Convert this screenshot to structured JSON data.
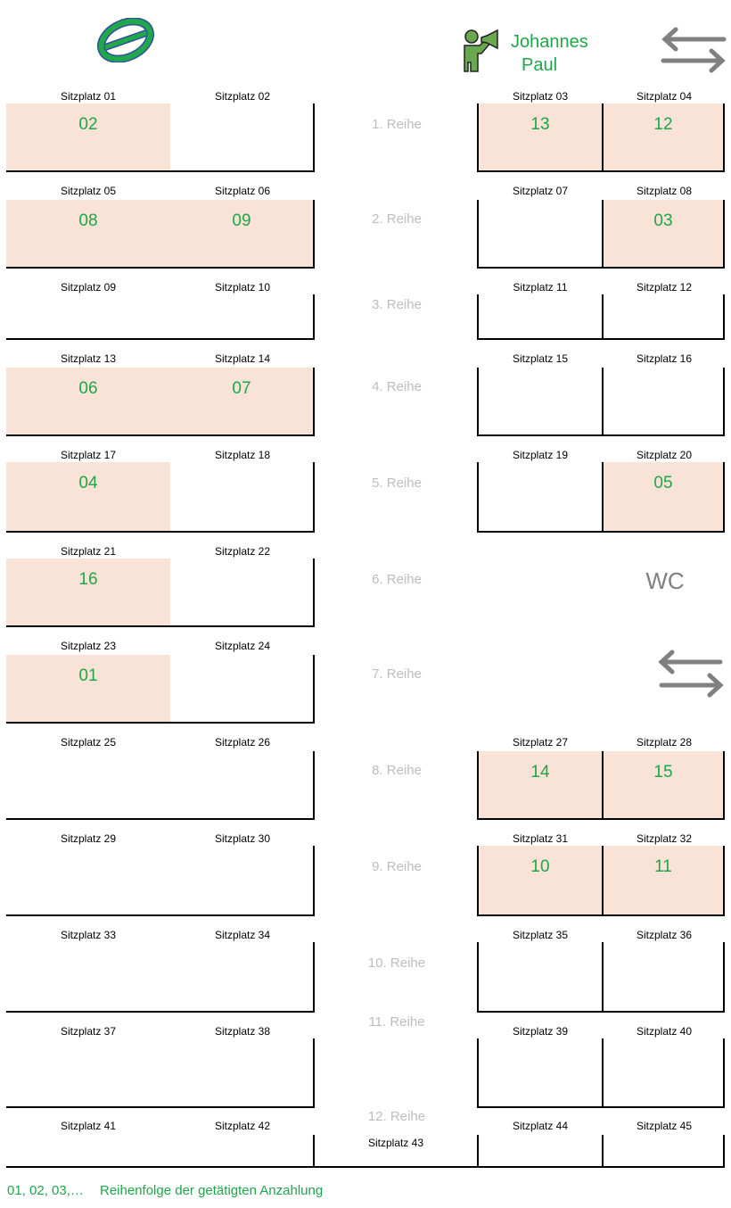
{
  "header": {
    "driver_name_line1": "Johannes",
    "driver_name_line2": "Paul",
    "left_icon": "no-entry-icon",
    "driver_icon": "person-megaphone-icon",
    "door_icon": "swap-arrows-icon"
  },
  "wc_label": "WC",
  "legend": {
    "sample": "01, 02, 03,…",
    "text": "Reihenfolge der getätigten Anzahlung"
  },
  "colors": {
    "booked": "#f9e3d6",
    "number": "#1fa54a",
    "row_label": "#bdbdbd"
  },
  "rows": [
    {
      "label": "1. Reihe",
      "seats": [
        {
          "label": "Sitzplatz 01",
          "number": "02"
        },
        {
          "label": "Sitzplatz 02",
          "number": ""
        },
        {
          "label": "Sitzplatz 03",
          "number": "13"
        },
        {
          "label": "Sitzplatz 04",
          "number": "12"
        }
      ]
    },
    {
      "label": "2. Reihe",
      "seats": [
        {
          "label": "Sitzplatz 05",
          "number": "08"
        },
        {
          "label": "Sitzplatz 06",
          "number": "09"
        },
        {
          "label": "Sitzplatz 07",
          "number": ""
        },
        {
          "label": "Sitzplatz 08",
          "number": "03"
        }
      ]
    },
    {
      "label": "3. Reihe",
      "seats": [
        {
          "label": "Sitzplatz 09",
          "number": ""
        },
        {
          "label": "Sitzplatz 10",
          "number": ""
        },
        {
          "label": "Sitzplatz 11",
          "number": ""
        },
        {
          "label": "Sitzplatz 12",
          "number": ""
        }
      ]
    },
    {
      "label": "4. Reihe",
      "seats": [
        {
          "label": "Sitzplatz 13",
          "number": "06"
        },
        {
          "label": "Sitzplatz 14",
          "number": "07"
        },
        {
          "label": "Sitzplatz 15",
          "number": ""
        },
        {
          "label": "Sitzplatz 16",
          "number": ""
        }
      ]
    },
    {
      "label": "5. Reihe",
      "seats": [
        {
          "label": "Sitzplatz 17",
          "number": "04"
        },
        {
          "label": "Sitzplatz 18",
          "number": ""
        },
        {
          "label": "Sitzplatz 19",
          "number": ""
        },
        {
          "label": "Sitzplatz 20",
          "number": "05"
        }
      ]
    },
    {
      "label": "6. Reihe",
      "seats": [
        {
          "label": "Sitzplatz 21",
          "number": "16"
        },
        {
          "label": "Sitzplatz 22",
          "number": ""
        }
      ]
    },
    {
      "label": "7. Reihe",
      "seats": [
        {
          "label": "Sitzplatz 23",
          "number": "01"
        },
        {
          "label": "Sitzplatz 24",
          "number": ""
        }
      ]
    },
    {
      "label": "8. Reihe",
      "seats": [
        {
          "label": "Sitzplatz 25",
          "number": ""
        },
        {
          "label": "Sitzplatz 26",
          "number": ""
        },
        {
          "label": "Sitzplatz 27",
          "number": "14"
        },
        {
          "label": "Sitzplatz 28",
          "number": "15"
        }
      ]
    },
    {
      "label": "9. Reihe",
      "seats": [
        {
          "label": "Sitzplatz 29",
          "number": ""
        },
        {
          "label": "Sitzplatz 30",
          "number": ""
        },
        {
          "label": "Sitzplatz 31",
          "number": "10"
        },
        {
          "label": "Sitzplatz 32",
          "number": "11"
        }
      ]
    },
    {
      "label": "10. Reihe",
      "seats": [
        {
          "label": "Sitzplatz 33",
          "number": ""
        },
        {
          "label": "Sitzplatz 34",
          "number": ""
        },
        {
          "label": "Sitzplatz 35",
          "number": ""
        },
        {
          "label": "Sitzplatz 36",
          "number": ""
        }
      ]
    },
    {
      "label": "11. Reihe",
      "seats": [
        {
          "label": "Sitzplatz 37",
          "number": ""
        },
        {
          "label": "Sitzplatz 38",
          "number": ""
        },
        {
          "label": "Sitzplatz 39",
          "number": ""
        },
        {
          "label": "Sitzplatz 40",
          "number": ""
        }
      ]
    },
    {
      "label": "12. Reihe",
      "seats": [
        {
          "label": "Sitzplatz 41",
          "number": ""
        },
        {
          "label": "Sitzplatz 42",
          "number": ""
        },
        {
          "label": "Sitzplatz 44",
          "number": ""
        },
        {
          "label": "Sitzplatz 45",
          "number": ""
        },
        {
          "label": "Sitzplatz 43",
          "number": ""
        }
      ]
    }
  ]
}
